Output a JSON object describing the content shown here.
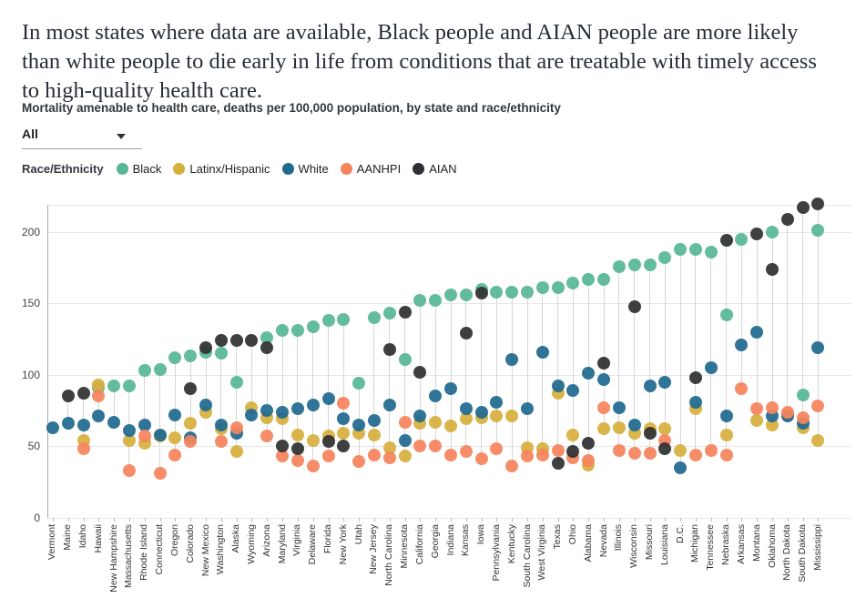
{
  "headline": "In most states where data are available, Black people and AIAN people are more likely than white people to die early in life from conditions that are treatable with timely access to high-quality health care.",
  "subtitle": "Mortality amenable to health care, deaths per 100,000 population, by state and race/ethnicity",
  "filter": {
    "value": "All"
  },
  "legend": {
    "label": "Race/Ethnicity",
    "items": [
      {
        "label": "Black",
        "color": "#57b794"
      },
      {
        "label": "Latinx/Hispanic",
        "color": "#d6af3d"
      },
      {
        "label": "White",
        "color": "#20698f"
      },
      {
        "label": "AANHPI",
        "color": "#f5845c"
      },
      {
        "label": "AIAN",
        "color": "#2f3033"
      }
    ]
  },
  "chart_data": {
    "type": "scatter",
    "title": "Mortality amenable to health care, deaths per 100,000 population, by state and race/ethnicity",
    "xlabel": "",
    "ylabel": "deaths per 100,000 population",
    "ylim": [
      0,
      225
    ],
    "yticks": [
      0,
      50,
      100,
      150,
      200
    ],
    "grid": true,
    "legend_position": "top",
    "categories": [
      "Vermont",
      "Maine",
      "Idaho",
      "Hawaii",
      "New Hampshire",
      "Massachusetts",
      "Rhode Island",
      "Connecticut",
      "Oregon",
      "Colorado",
      "New Mexico",
      "Washington",
      "Alaska",
      "Wyoming",
      "Arizona",
      "Maryland",
      "Virginia",
      "Delaware",
      "Florida",
      "New York",
      "Utah",
      "New Jersey",
      "North Carolina",
      "Minnesota",
      "California",
      "Georgia",
      "Indiana",
      "Kansas",
      "Iowa",
      "Pennsylvania",
      "Kentucky",
      "South Carolina",
      "West Virginia",
      "Texas",
      "Ohio",
      "Alabama",
      "Nevada",
      "Illinois",
      "Wisconsin",
      "Missouri",
      "Louisiana",
      "D.C.",
      "Michigan",
      "Tennessee",
      "Nebraska",
      "Arkansas",
      "Montana",
      "Oklahoma",
      "North Dakota",
      "South Dakota",
      "Mississippi"
    ],
    "series": [
      {
        "name": "Black",
        "color": "#57b794",
        "values": [
          null,
          null,
          null,
          91,
          92,
          92,
          103,
          104,
          112,
          113,
          116,
          115,
          95,
          null,
          126,
          131,
          131,
          134,
          138,
          139,
          94,
          140,
          143,
          111,
          152,
          152,
          156,
          156,
          160,
          158,
          158,
          158,
          161,
          161,
          164,
          167,
          167,
          176,
          177,
          177,
          182,
          188,
          188,
          186,
          142,
          195,
          null,
          200,
          null,
          86,
          201
        ]
      },
      {
        "name": "Latinx/Hispanic",
        "color": "#d6af3d",
        "values": [
          null,
          null,
          54,
          93,
          null,
          54,
          52,
          57,
          56,
          66,
          74,
          62,
          46,
          77,
          70,
          69,
          58,
          54,
          57,
          59,
          59,
          58,
          49,
          43,
          66,
          67,
          64,
          69,
          70,
          71,
          71,
          49,
          48,
          87,
          58,
          37,
          62,
          63,
          59,
          62,
          62,
          47,
          76,
          null,
          58,
          null,
          68,
          65,
          72,
          63,
          54
        ]
      },
      {
        "name": "White",
        "color": "#20698f",
        "values": [
          63,
          66,
          65,
          71,
          67,
          61,
          65,
          58,
          72,
          56,
          79,
          65,
          59,
          72,
          75,
          74,
          76,
          79,
          83,
          69,
          65,
          68,
          79,
          54,
          71,
          85,
          90,
          76,
          74,
          81,
          111,
          76,
          116,
          92,
          89,
          101,
          97,
          77,
          65,
          92,
          95,
          35,
          81,
          105,
          71,
          121,
          130,
          71,
          71,
          66,
          119
        ]
      },
      {
        "name": "AANHPI",
        "color": "#f5845c",
        "values": [
          null,
          null,
          48,
          85,
          null,
          33,
          57,
          31,
          44,
          53,
          null,
          53,
          63,
          null,
          57,
          43,
          40,
          36,
          43,
          80,
          39,
          44,
          42,
          67,
          50,
          50,
          44,
          46,
          41,
          48,
          36,
          43,
          44,
          47,
          42,
          40,
          77,
          47,
          45,
          45,
          54,
          null,
          44,
          47,
          44,
          90,
          76,
          77,
          74,
          70,
          78
        ]
      },
      {
        "name": "AIAN",
        "color": "#2f3033",
        "values": [
          null,
          85,
          87,
          null,
          null,
          null,
          null,
          null,
          null,
          90,
          119,
          124,
          124,
          124,
          119,
          50,
          48,
          null,
          53,
          50,
          null,
          null,
          118,
          144,
          102,
          null,
          null,
          129,
          157,
          null,
          null,
          null,
          null,
          38,
          46,
          52,
          108,
          null,
          148,
          59,
          48,
          null,
          98,
          null,
          194,
          null,
          199,
          174,
          209,
          217,
          220
        ]
      }
    ]
  }
}
